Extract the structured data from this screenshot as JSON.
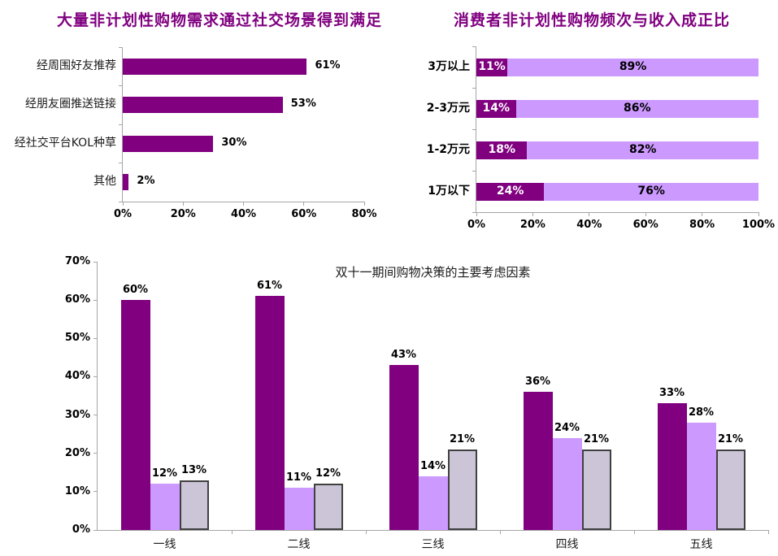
{
  "page": {
    "background": "#ffffff",
    "accent_color": "#800080"
  },
  "chart_data": [
    {
      "id": "social-scenarios",
      "type": "bar",
      "orientation": "horizontal",
      "title": "大量非计划性购物需求通过社交场景得到满足",
      "title_color": "#800080",
      "categories": [
        "经周围好友推荐",
        "经朋友圈推送链接",
        "经社交平台KOL种草",
        "其他"
      ],
      "values": [
        61,
        53,
        30,
        2
      ],
      "labels": [
        "61%",
        "53%",
        "30%",
        "2%"
      ],
      "bar_color": "#800080",
      "x_ticks": [
        "0%",
        "20%",
        "40%",
        "60%",
        "80%"
      ],
      "xlim": [
        0,
        80
      ],
      "grid": false,
      "legend": false
    },
    {
      "id": "income-vs-frequency",
      "type": "stacked-bar",
      "orientation": "horizontal",
      "title": "消费者非计划性购物频次与收入成正比",
      "title_color": "#800080",
      "categories": [
        "3万以上",
        "2-3万元",
        "1-2万元",
        "1万以下"
      ],
      "series": [
        {
          "values": [
            11,
            14,
            18,
            24
          ],
          "labels": [
            "11%",
            "14%",
            "18%",
            "24%"
          ],
          "color": "#800080",
          "label_color": "#ffffff"
        },
        {
          "values": [
            89,
            86,
            82,
            76
          ],
          "labels": [
            "89%",
            "86%",
            "82%",
            "76%"
          ],
          "color": "#cc99ff",
          "label_color": "#000000"
        }
      ],
      "x_ticks": [
        "0%",
        "20%",
        "40%",
        "60%",
        "80%",
        "100%"
      ],
      "xlim": [
        0,
        100
      ],
      "grid": false,
      "legend": false
    },
    {
      "id": "double11-decision-factors",
      "type": "grouped-bar",
      "orientation": "vertical",
      "title": "双十一期间购物决策的主要考虑因素",
      "title_color": "#1a1a1a",
      "categories": [
        "一线",
        "二线",
        "三线",
        "四线",
        "五线"
      ],
      "series": [
        {
          "values": [
            60,
            61,
            43,
            36,
            33
          ],
          "labels": [
            "60%",
            "61%",
            "43%",
            "36%",
            "33%"
          ],
          "color": "#800080"
        },
        {
          "values": [
            12,
            11,
            14,
            24,
            28
          ],
          "labels": [
            "12%",
            "11%",
            "14%",
            "24%",
            "28%"
          ],
          "color": "#cc99ff"
        },
        {
          "values": [
            13,
            12,
            21,
            21,
            21
          ],
          "labels": [
            "13%",
            "12%",
            "21%",
            "21%",
            "21%"
          ],
          "color": "#cbc5d7",
          "border_color": "#404040"
        }
      ],
      "y_ticks": [
        "0%",
        "10%",
        "20%",
        "30%",
        "40%",
        "50%",
        "60%",
        "70%"
      ],
      "ylim": [
        0,
        70
      ],
      "grid": false,
      "legend": false
    }
  ]
}
